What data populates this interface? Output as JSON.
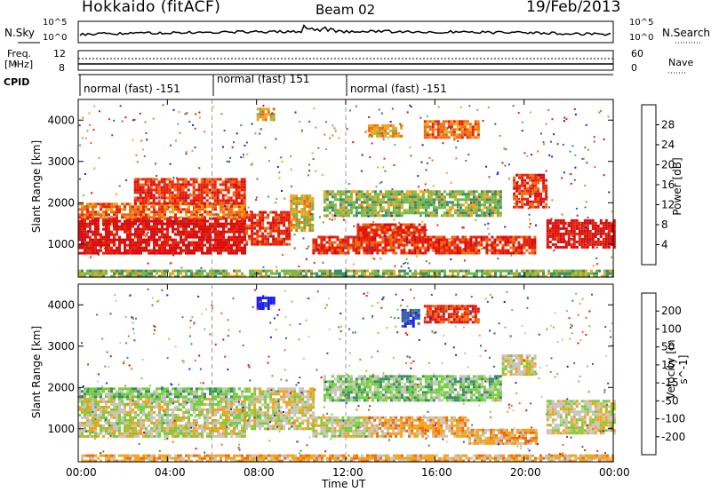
{
  "header": {
    "station": "Hokkaido (fitACF)",
    "beam": "Beam 02",
    "date": "19/Feb/2013"
  },
  "noise_panel": {
    "left_label": "N.Sky",
    "right_label": "N.Search",
    "left_ticks": [
      "10^5",
      "10^0"
    ],
    "right_ticks": [
      "10^5",
      "10^0"
    ]
  },
  "freq_panel": {
    "left_label_1": "Freq.",
    "left_label_2": "[MHz]",
    "right_label": "Nave",
    "left_ticks": [
      "12",
      "8"
    ],
    "right_ticks": [
      "60",
      "0"
    ]
  },
  "cpid": {
    "label": "CPID",
    "segments": [
      {
        "name": "normal (fast) -151",
        "start_hr": 0,
        "end_hr": 6
      },
      {
        "name": "normal (fast) 151",
        "start_hr": 6,
        "end_hr": 12
      },
      {
        "name": "normal (fast) -151",
        "start_hr": 12,
        "end_hr": 24
      }
    ]
  },
  "time_axis": {
    "label": "Time UT",
    "ticks": [
      "00:00",
      "04:00",
      "08:00",
      "12:00",
      "16:00",
      "20:00",
      "00:00"
    ]
  },
  "power_colorbar": {
    "label": "Power [dB]",
    "ticks": [
      "4",
      "8",
      "12",
      "16",
      "20",
      "24",
      "28"
    ],
    "colors": [
      "#1a1aff",
      "#2e5aa8",
      "#3c8a6a",
      "#6fb84a",
      "#f2a31a",
      "#f06a0e",
      "#e8220b",
      "#d90b0b"
    ]
  },
  "velocity_colorbar": {
    "label": "Velocity [m s^-1]",
    "ticks": [
      "200",
      "100",
      "50",
      "15",
      "-15",
      "-50",
      "-100",
      "-200"
    ],
    "colors": [
      "#1a1aff",
      "#2e5aa8",
      "#3c8a6a",
      "#6fd03a",
      "#c8c4bc",
      "#f2a31a",
      "#f06a0e",
      "#e8220b",
      "#d90b0b"
    ]
  },
  "chart_data": [
    {
      "type": "heatmap",
      "title": "Power",
      "xlabel": "Time UT",
      "ylabel": "Slant Range [km]",
      "xlim": [
        0,
        24
      ],
      "ylim": [
        200,
        4500
      ],
      "yticks": [
        1000,
        2000,
        3000,
        4000
      ],
      "colorbar_label": "Power [dB]",
      "regions": [
        {
          "t0": 0.0,
          "t1": 7.5,
          "r0": 800,
          "r1": 1650,
          "level": 7
        },
        {
          "t0": 0.0,
          "t1": 7.5,
          "r0": 1650,
          "r1": 2000,
          "level": 5
        },
        {
          "t0": 2.5,
          "t1": 7.5,
          "r0": 2000,
          "r1": 2600,
          "level": 6
        },
        {
          "t0": 7.5,
          "t1": 9.5,
          "r0": 1000,
          "r1": 1800,
          "level": 6
        },
        {
          "t0": 9.5,
          "t1": 10.5,
          "r0": 1300,
          "r1": 2200,
          "level": 4
        },
        {
          "t0": 10.5,
          "t1": 20.5,
          "r0": 800,
          "r1": 1200,
          "level": 6
        },
        {
          "t0": 11.0,
          "t1": 19.0,
          "r0": 1700,
          "r1": 2300,
          "level": 3
        },
        {
          "t0": 12.5,
          "t1": 15.5,
          "r0": 1200,
          "r1": 1500,
          "level": 6
        },
        {
          "t0": 15.5,
          "t1": 18.0,
          "r0": 3600,
          "r1": 4000,
          "level": 5
        },
        {
          "t0": 13.0,
          "t1": 14.5,
          "r0": 3600,
          "r1": 3900,
          "level": 4
        },
        {
          "t0": 8.0,
          "t1": 8.8,
          "r0": 4000,
          "r1": 4300,
          "level": 4
        },
        {
          "t0": 19.5,
          "t1": 21.0,
          "r0": 1900,
          "r1": 2700,
          "level": 6
        },
        {
          "t0": 21.0,
          "t1": 24.0,
          "r0": 900,
          "r1": 1600,
          "level": 7
        },
        {
          "t0": 0.0,
          "t1": 24.0,
          "r0": 200,
          "r1": 380,
          "level": 3
        }
      ]
    },
    {
      "type": "heatmap",
      "title": "Velocity",
      "xlabel": "Time UT",
      "ylabel": "Slant Range [km]",
      "xlim": [
        0,
        24
      ],
      "ylim": [
        200,
        4500
      ],
      "yticks": [
        1000,
        2000,
        3000,
        4000
      ],
      "colorbar_label": "Velocity [m s^-1]",
      "regions": [
        {
          "t0": 0.0,
          "t1": 7.5,
          "r0": 800,
          "r1": 1750,
          "level": 4
        },
        {
          "t0": 0.0,
          "t1": 7.5,
          "r0": 1750,
          "r1": 2000,
          "level": 3
        },
        {
          "t0": 7.5,
          "t1": 10.5,
          "r0": 1000,
          "r1": 2000,
          "level": 4
        },
        {
          "t0": 10.5,
          "t1": 13.0,
          "r0": 800,
          "r1": 1300,
          "level": 4
        },
        {
          "t0": 13.0,
          "t1": 17.5,
          "r0": 800,
          "r1": 1300,
          "level": 5
        },
        {
          "t0": 17.5,
          "t1": 20.5,
          "r0": 650,
          "r1": 1000,
          "level": 5
        },
        {
          "t0": 11.0,
          "t1": 19.0,
          "r0": 1700,
          "r1": 2300,
          "level": 3
        },
        {
          "t0": 15.5,
          "t1": 18.0,
          "r0": 3600,
          "r1": 4000,
          "level": 7
        },
        {
          "t0": 19.0,
          "t1": 20.5,
          "r0": 2300,
          "r1": 2800,
          "level": 4
        },
        {
          "t0": 21.0,
          "t1": 24.0,
          "r0": 900,
          "r1": 1700,
          "level": 4
        },
        {
          "t0": 14.5,
          "t1": 15.3,
          "r0": 3500,
          "r1": 3900,
          "level": 1
        },
        {
          "t0": 8.0,
          "t1": 8.8,
          "r0": 3900,
          "r1": 4200,
          "level": 0
        },
        {
          "t0": 0.0,
          "t1": 24.0,
          "r0": 200,
          "r1": 380,
          "level": 5
        }
      ]
    }
  ]
}
